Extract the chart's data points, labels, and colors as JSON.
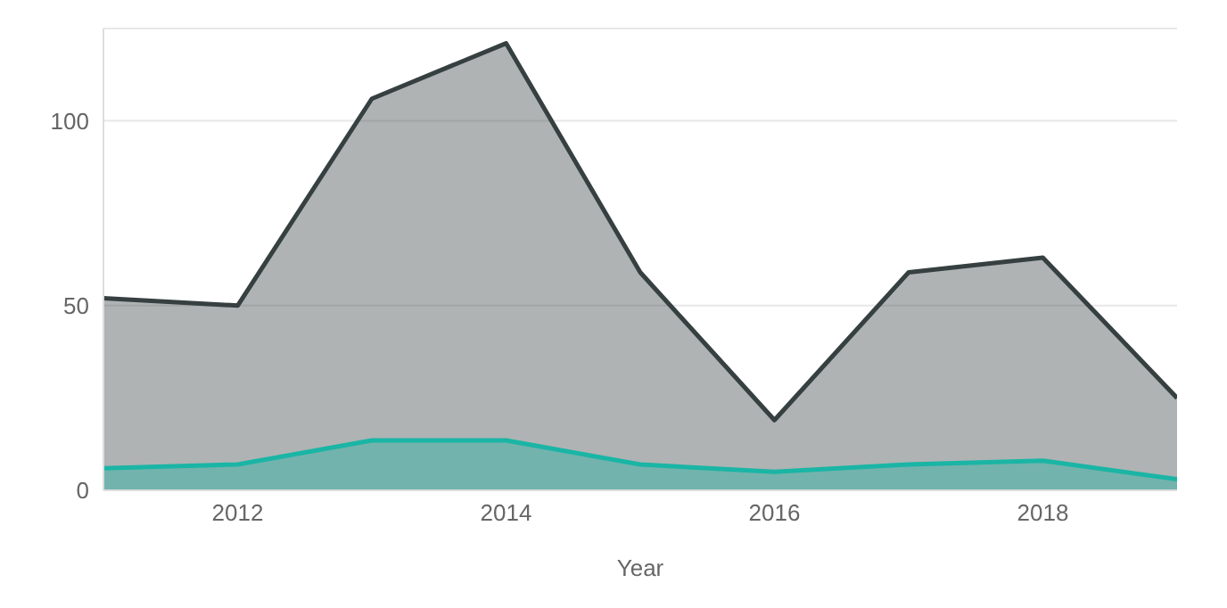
{
  "chart_data": {
    "type": "area",
    "xlabel": "Year",
    "x": [
      2011,
      2012,
      2013,
      2014,
      2015,
      2016,
      2017,
      2018,
      2019
    ],
    "series": [
      {
        "color": "#374040",
        "values": [
          52,
          50,
          106,
          121,
          59,
          19,
          59,
          63,
          25
        ]
      },
      {
        "color": "#1ab5a5",
        "values": [
          6,
          7,
          13.5,
          13.5,
          7,
          5,
          7,
          8,
          3
        ]
      }
    ],
    "xlim": [
      2011,
      2019
    ],
    "xticks": [
      2012,
      2014,
      2016,
      2018
    ],
    "ylim": [
      0,
      125
    ],
    "yticks": [
      0,
      50,
      100
    ],
    "grid": "y",
    "legend": false
  }
}
